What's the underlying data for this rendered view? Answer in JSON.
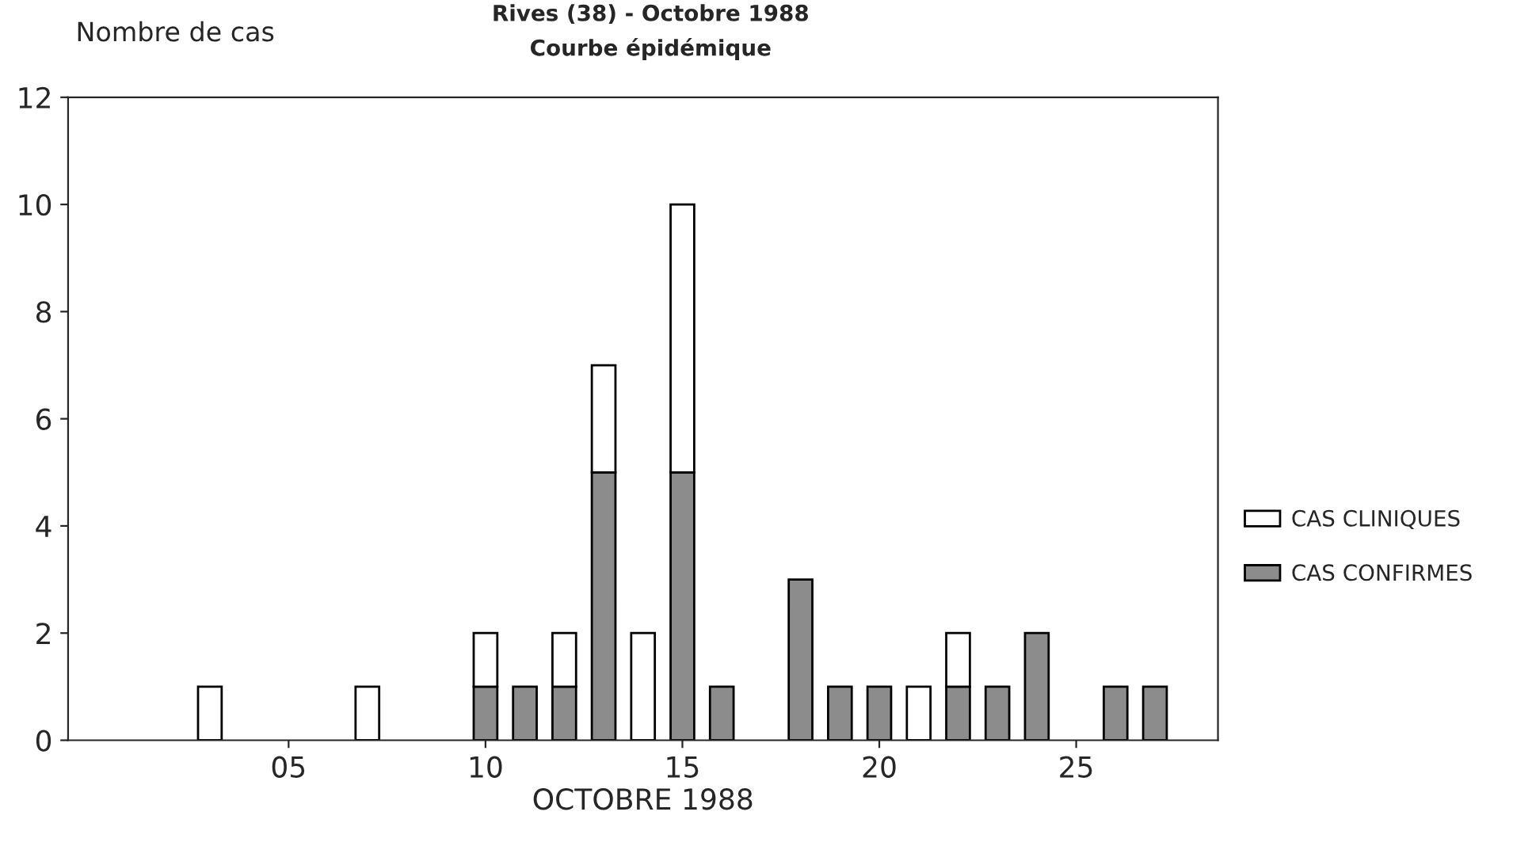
{
  "chart_data": {
    "type": "bar",
    "title": "Rives (38) - Octobre 1988",
    "subtitle": "Courbe épidémique",
    "ylabel": "Nombre de cas",
    "xlabel": "OCTOBRE 1988",
    "stacked": true,
    "x": [
      3,
      7,
      10,
      11,
      12,
      13,
      14,
      15,
      16,
      18,
      19,
      20,
      21,
      22,
      23,
      24,
      26,
      27
    ],
    "series": [
      {
        "name": "CAS CONFIRMES",
        "color": "#8c8c8c",
        "values": [
          null,
          null,
          1,
          1,
          1,
          5,
          null,
          5,
          1,
          3,
          1,
          1,
          null,
          1,
          1,
          2,
          1,
          1
        ]
      },
      {
        "name": "CAS CLINIQUES",
        "color": "#ffffff",
        "values": [
          1,
          1,
          1,
          null,
          1,
          2,
          2,
          5,
          null,
          null,
          null,
          null,
          1,
          1,
          null,
          null,
          null,
          null
        ]
      }
    ],
    "xlim": [
      -0.6,
      28.6
    ],
    "xticks": [
      {
        "value": 5,
        "label": "05"
      },
      10,
      15,
      20,
      25
    ],
    "ylim": [
      0,
      12
    ],
    "yticks": [
      0,
      2,
      4,
      6,
      8,
      10,
      12
    ],
    "grid": false,
    "legend": "right"
  }
}
